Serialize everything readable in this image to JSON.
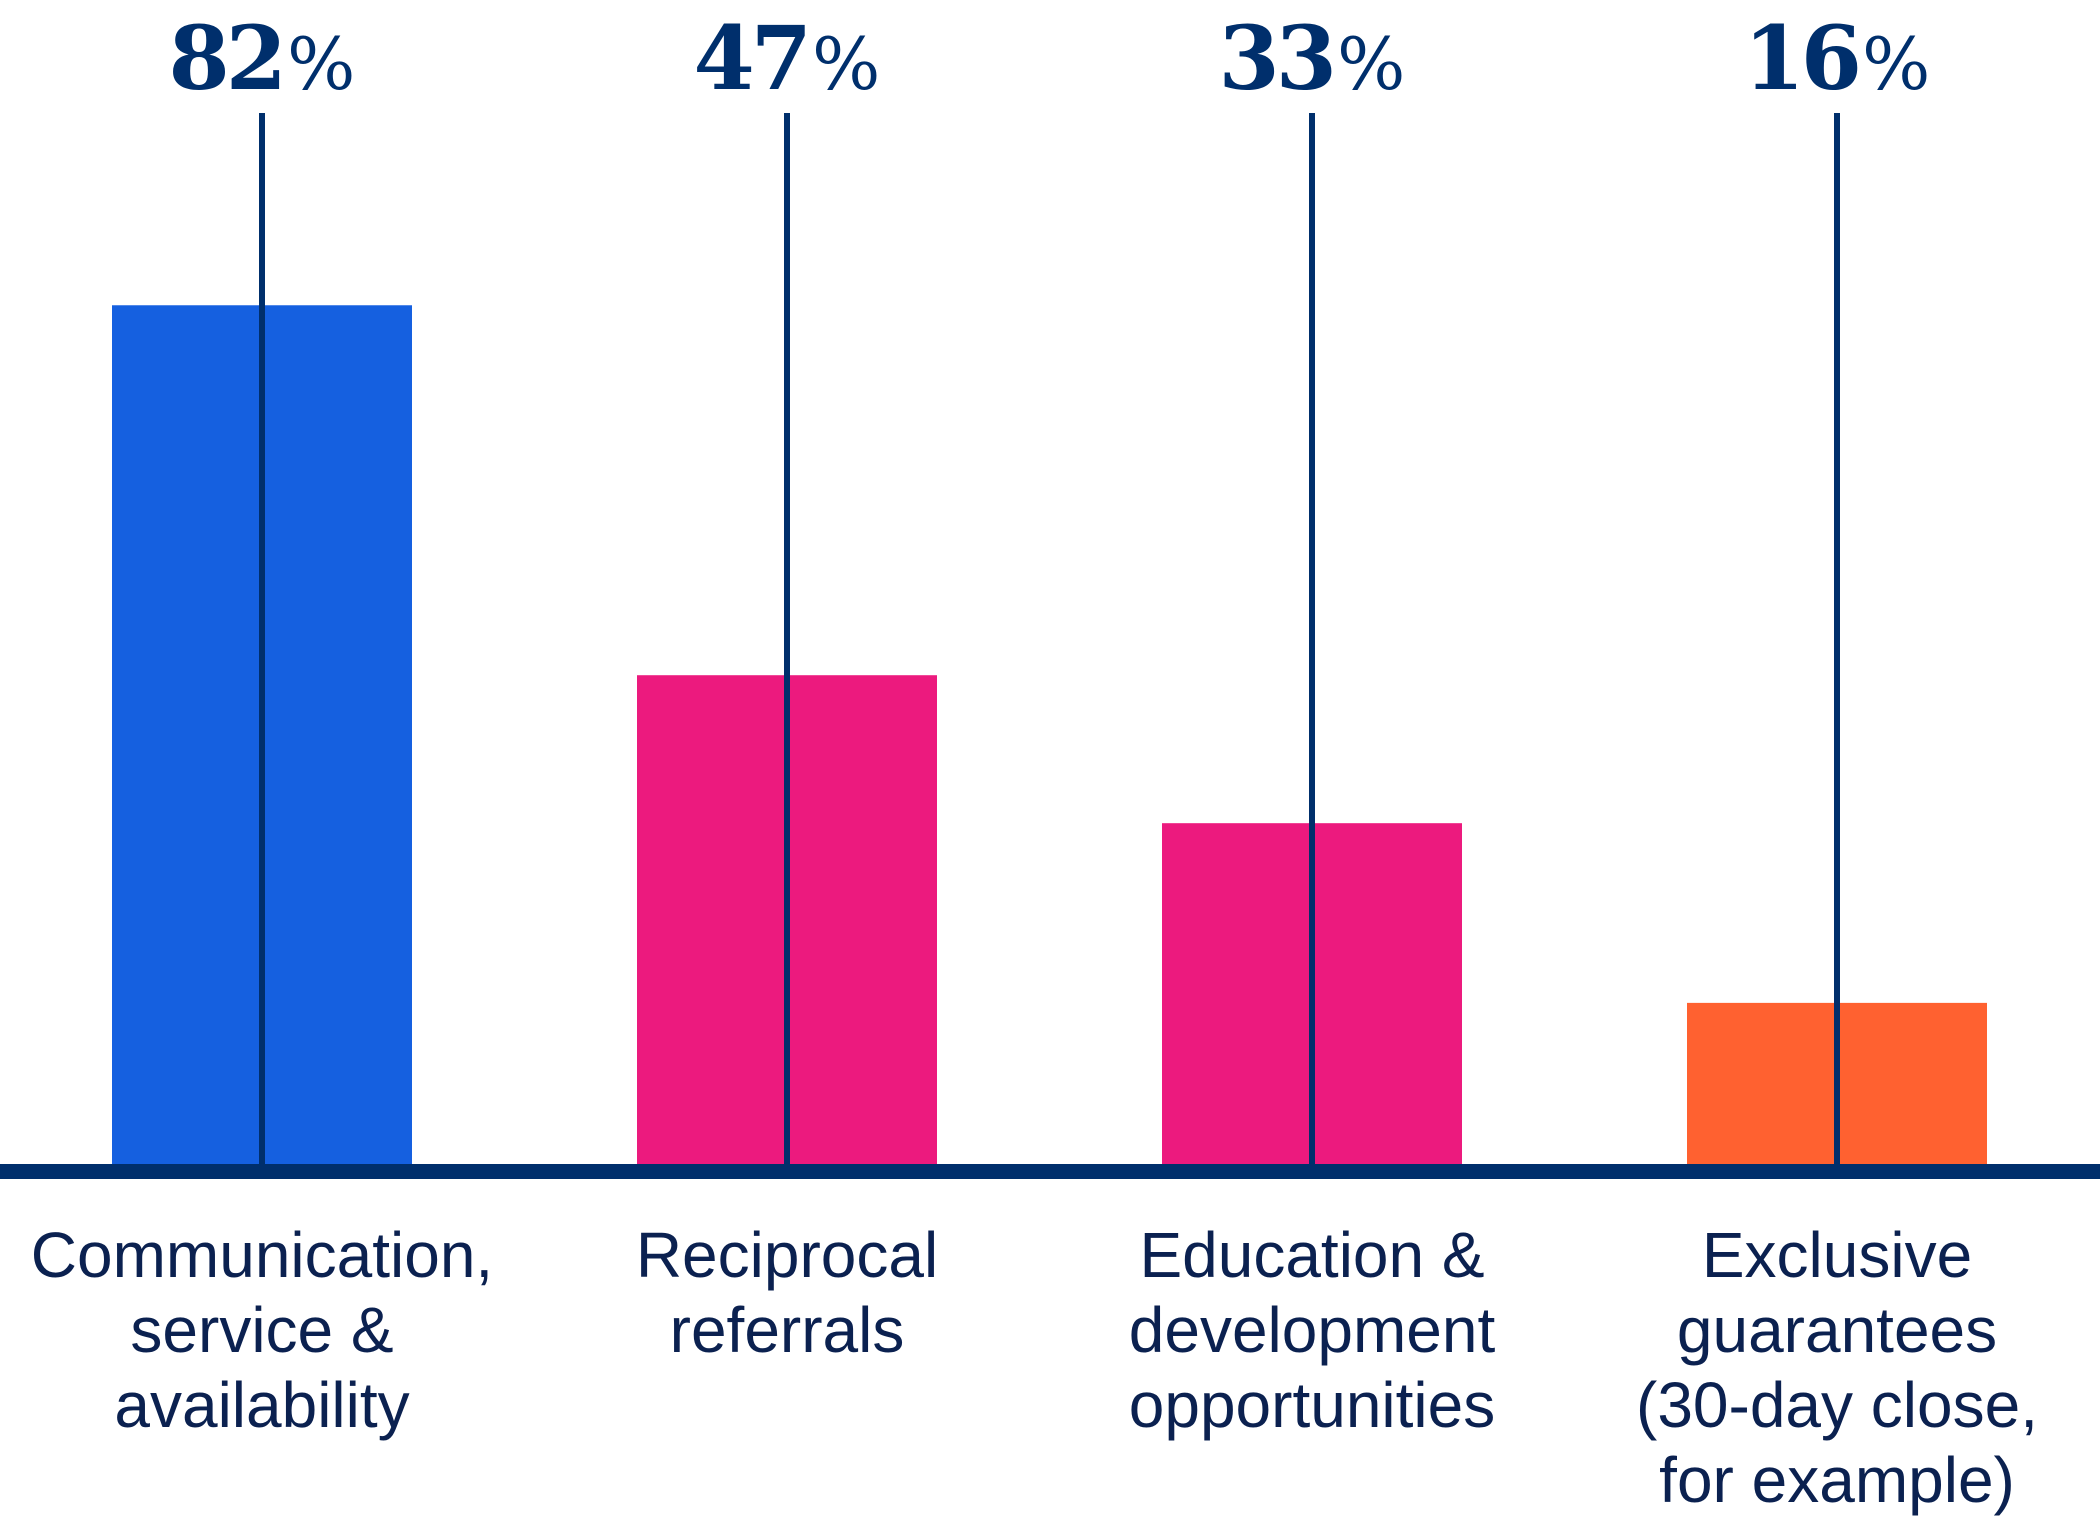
{
  "chart_data": {
    "type": "bar",
    "title": "",
    "xlabel": "",
    "ylabel": "",
    "ylim": [
      0,
      100
    ],
    "grid": false,
    "unit": "%",
    "categories": [
      [
        "Communication,",
        "service &",
        "availability"
      ],
      [
        "Reciprocal",
        "referrals"
      ],
      [
        "Education &",
        "development",
        "opportunities"
      ],
      [
        "Exclusive",
        "guarantees",
        "(30-day close,",
        "for example)"
      ]
    ],
    "values": [
      82,
      47,
      33,
      16
    ],
    "value_labels": [
      "82",
      "47",
      "33",
      "16"
    ],
    "colors": [
      "#1560e0",
      "#ec1a7e",
      "#ec1a7e",
      "#ff6130"
    ],
    "axis_color": "#002f6c"
  }
}
